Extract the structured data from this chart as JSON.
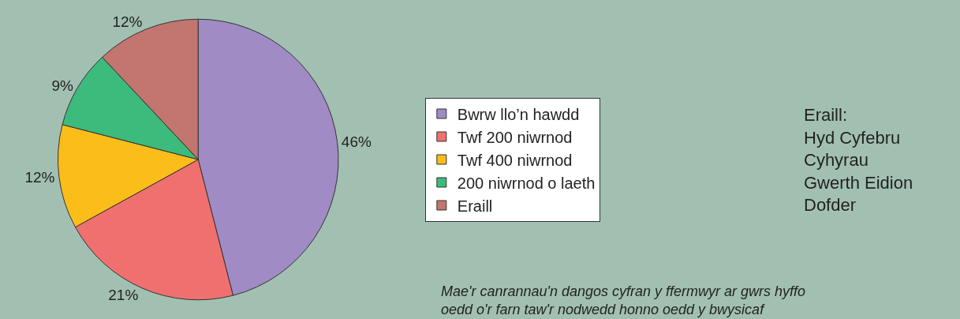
{
  "chart_data": {
    "type": "pie",
    "categories": [
      "Bwrw llo’n hawdd",
      "Twf 200 niwrnod",
      "Twf 400 niwrnod",
      "200 niwrnod o laeth",
      "Eraill"
    ],
    "values": [
      46,
      21,
      12,
      9,
      12
    ],
    "value_labels": [
      "46%",
      "21%",
      "12%",
      "9%",
      "12%"
    ],
    "colors": [
      "#a08bc4",
      "#f07070",
      "#fbbd1a",
      "#3dbb7c",
      "#c37570"
    ],
    "legend": "right",
    "annotations": [
      "Eraill:\nHyd Cyfebru\nCyhyrau\nGwerth Eidion\nDofder",
      "Mae'r canrannau'n dangos cyfran y ffermwyr ar gwrs hyffo\noedd o'r farn taw'r nodwedd honno oedd y bwysicaf"
    ]
  }
}
